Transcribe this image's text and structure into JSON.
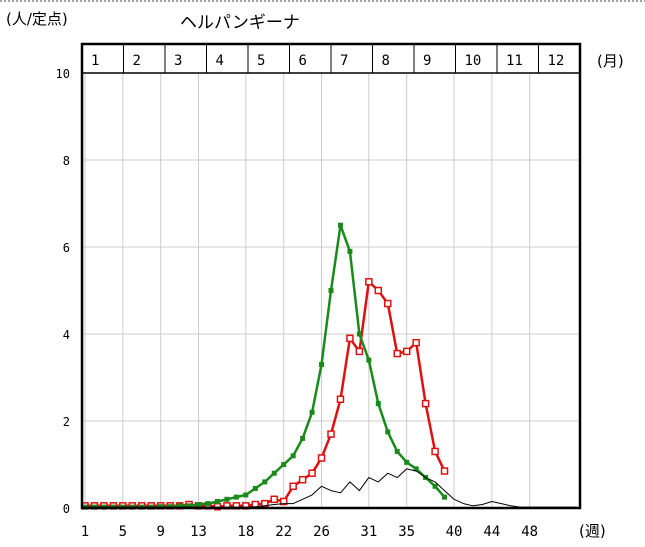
{
  "chart_data": {
    "type": "line",
    "title": "ヘルパンギーナ",
    "ylabel": "(人/定点)",
    "xlabel": "(週)",
    "month_unit": "(月)",
    "months": [
      "1",
      "2",
      "3",
      "4",
      "5",
      "6",
      "7",
      "8",
      "9",
      "10",
      "11",
      "12"
    ],
    "y_ticks": [
      "0",
      "2",
      "4",
      "6",
      "8",
      "10"
    ],
    "x_ticks": [
      "1",
      "5",
      "9",
      "13",
      "18",
      "22",
      "26",
      "31",
      "35",
      "40",
      "44",
      "48"
    ],
    "x_tick_weeks": [
      1,
      5,
      9,
      13,
      18,
      22,
      26,
      31,
      35,
      40,
      44,
      48
    ],
    "ylim": [
      0,
      10
    ],
    "xlim": [
      1,
      53
    ],
    "grid": true,
    "series": [
      {
        "color": "#dd1111",
        "x": [
          1,
          2,
          3,
          4,
          5,
          6,
          7,
          8,
          9,
          10,
          11,
          12,
          13,
          14,
          15,
          16,
          17,
          18,
          19,
          20,
          21,
          22,
          23,
          24,
          25,
          26,
          27,
          28,
          29,
          30,
          31,
          32,
          33,
          34,
          35,
          36,
          37,
          38,
          39
        ],
        "values": [
          0.05,
          0.05,
          0.05,
          0.05,
          0.05,
          0.05,
          0.05,
          0.05,
          0.05,
          0.05,
          0.05,
          0.08,
          0.05,
          0.05,
          0.03,
          0.05,
          0.05,
          0.05,
          0.08,
          0.1,
          0.2,
          0.15,
          0.5,
          0.65,
          0.8,
          1.15,
          1.7,
          2.5,
          3.9,
          3.6,
          5.2,
          5.0,
          4.7,
          3.55,
          3.6,
          3.8,
          2.4,
          1.3,
          0.85
        ]
      },
      {
        "color": "#1a8a1a",
        "x": [
          1,
          2,
          3,
          4,
          5,
          6,
          7,
          8,
          9,
          10,
          11,
          12,
          13,
          14,
          15,
          16,
          17,
          18,
          19,
          20,
          21,
          22,
          23,
          24,
          25,
          26,
          27,
          28,
          29,
          30,
          31,
          32,
          33,
          34,
          35,
          36,
          37,
          38,
          39
        ],
        "values": [
          0.02,
          0.02,
          0.02,
          0.02,
          0.02,
          0.02,
          0.02,
          0.02,
          0.03,
          0.03,
          0.05,
          0.05,
          0.08,
          0.1,
          0.15,
          0.2,
          0.25,
          0.3,
          0.45,
          0.6,
          0.8,
          1.0,
          1.2,
          1.6,
          2.2,
          3.3,
          5.0,
          6.5,
          5.9,
          4.0,
          3.4,
          2.4,
          1.75,
          1.3,
          1.05,
          0.9,
          0.7,
          0.5,
          0.25
        ]
      },
      {
        "color": "#000000",
        "x": [
          1,
          2,
          3,
          4,
          5,
          6,
          7,
          8,
          9,
          10,
          11,
          12,
          13,
          14,
          15,
          16,
          17,
          18,
          19,
          20,
          21,
          22,
          23,
          24,
          25,
          26,
          27,
          28,
          29,
          30,
          31,
          32,
          33,
          34,
          35,
          36,
          37,
          38,
          39,
          40,
          41,
          42,
          43,
          44,
          45,
          46,
          47,
          48,
          49,
          50,
          51,
          52,
          53
        ],
        "values": [
          0.02,
          0.02,
          0.02,
          0.02,
          0.02,
          0.02,
          0.02,
          0.02,
          0.02,
          0.02,
          0.02,
          0.02,
          0.02,
          0.02,
          0.02,
          0.02,
          0.02,
          0.02,
          0.03,
          0.05,
          0.08,
          0.1,
          0.1,
          0.2,
          0.3,
          0.5,
          0.4,
          0.35,
          0.6,
          0.4,
          0.7,
          0.6,
          0.8,
          0.7,
          0.9,
          0.85,
          0.7,
          0.6,
          0.4,
          0.2,
          0.1,
          0.05,
          0.08,
          0.15,
          0.1,
          0.05,
          0.02,
          0.02,
          0.02,
          0.02,
          0.02,
          0.02,
          0.02
        ]
      }
    ]
  }
}
